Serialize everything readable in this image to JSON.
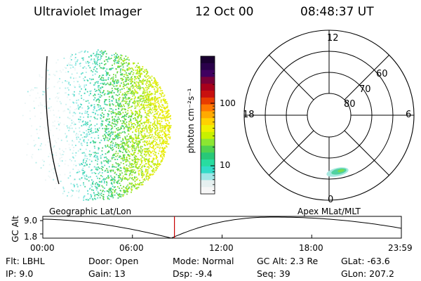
{
  "header": {
    "instrument": "Ultraviolet Imager",
    "date": "12 Oct 00",
    "time": "08:48:37 UT"
  },
  "colorbar": {
    "unit": "photon cm⁻²s⁻¹",
    "ticks": [
      {
        "label": "100",
        "value": 100
      },
      {
        "label": "10",
        "value": 10
      }
    ],
    "colors": [
      "#1a0030",
      "#2a004a",
      "#400060",
      "#7a0038",
      "#a8001c",
      "#c81010",
      "#e83c00",
      "#ff7800",
      "#ffaa00",
      "#ffd200",
      "#f0f000",
      "#c8f000",
      "#8ce632",
      "#50d250",
      "#28c878",
      "#28dca0",
      "#32dcc8",
      "#a0e6e6",
      "#e6f0f0",
      "#f6f6f6"
    ]
  },
  "polar_plot": {
    "hour_labels": {
      "top": "12",
      "left": "18",
      "right": "6",
      "bottom": "0"
    },
    "lat_labels": [
      "60",
      "70",
      "80"
    ]
  },
  "timeline": {
    "left_title": "Geographic Lat/Lon",
    "right_title": "Apex MLat/MLT",
    "axis_label": "GC Alt",
    "y_ticks": [
      "9.0",
      "1.8"
    ],
    "x_ticks": [
      "00:00",
      "06:00",
      "12:00",
      "18:00",
      "23:59"
    ],
    "current_marker_hours": 8.81,
    "marker_color": "#c80000"
  },
  "info": {
    "flt": "Flt: LBHL",
    "ip": "IP:  9.0",
    "door": "Door: Open",
    "gain": "Gain: 13",
    "mode": "Mode: Normal",
    "dsp": "Dsp:    -9.4",
    "gcalt": "GC Alt: 2.3 Re",
    "seq": "Seq: 39",
    "glat": "GLat: -63.6",
    "glon": "GLon: 207.2"
  }
}
